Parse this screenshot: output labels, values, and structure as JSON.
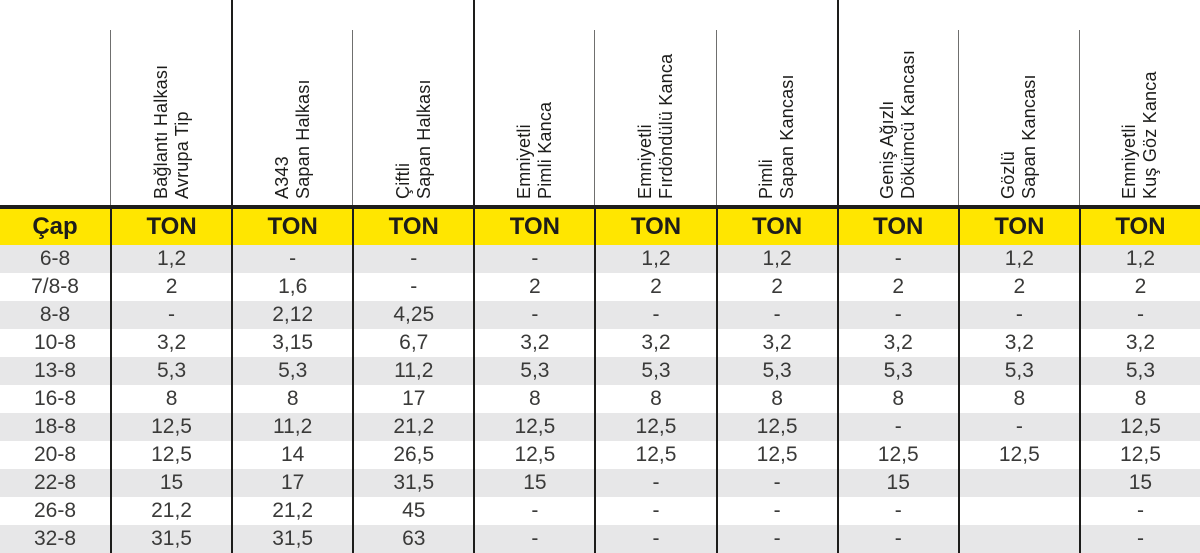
{
  "table": {
    "cap_header": "Çap",
    "ton_label": "TON",
    "colors": {
      "header_yellow": "#ffe600",
      "stripe_gray": "#e7e7e8",
      "line_black": "#1d1d1b",
      "line_gray": "#6f6f6e",
      "data_text": "#3a3a39"
    },
    "columns": [
      {
        "line1": "Bağlantı Halkası",
        "line2": "Avrupa Tip",
        "divider": "partial"
      },
      {
        "line1": "A343",
        "line2": "Sapan Halkası",
        "divider": "full"
      },
      {
        "line1": "Çiftli",
        "line2": "Sapan Halkası",
        "divider": "partial"
      },
      {
        "line1": "Emniyetli",
        "line2": "Pimli Kanca",
        "divider": "full"
      },
      {
        "line1": "Emniyetli",
        "line2": "Fırdöndülü Kanca",
        "divider": "partial"
      },
      {
        "line1": "Pimli",
        "line2": "Sapan Kancası",
        "divider": "partial"
      },
      {
        "line1": "Geniş Ağızlı",
        "line2": "Dökümcü Kancası",
        "divider": "full"
      },
      {
        "line1": "Gözlü",
        "line2": "Sapan Kancası",
        "divider": "partial"
      },
      {
        "line1": "Emniyetli",
        "line2": "Kuş Göz Kanca",
        "divider": "partial"
      }
    ],
    "rows": [
      {
        "cap": "6-8",
        "values": [
          "1,2",
          "-",
          "-",
          "-",
          "1,2",
          "1,2",
          "-",
          "1,2",
          "1,2"
        ]
      },
      {
        "cap": "7/8-8",
        "values": [
          "2",
          "1,6",
          "-",
          "2",
          "2",
          "2",
          "2",
          "2",
          "2"
        ]
      },
      {
        "cap": "8-8",
        "values": [
          "-",
          "2,12",
          "4,25",
          "-",
          "-",
          "-",
          "-",
          "-",
          "-"
        ]
      },
      {
        "cap": "10-8",
        "values": [
          "3,2",
          "3,15",
          "6,7",
          "3,2",
          "3,2",
          "3,2",
          "3,2",
          "3,2",
          "3,2"
        ]
      },
      {
        "cap": "13-8",
        "values": [
          "5,3",
          "5,3",
          "11,2",
          "5,3",
          "5,3",
          "5,3",
          "5,3",
          "5,3",
          "5,3"
        ]
      },
      {
        "cap": "16-8",
        "values": [
          "8",
          "8",
          "17",
          "8",
          "8",
          "8",
          "8",
          "8",
          "8"
        ]
      },
      {
        "cap": "18-8",
        "values": [
          "12,5",
          "11,2",
          "21,2",
          "12,5",
          "12,5",
          "12,5",
          "-",
          "-",
          "12,5"
        ]
      },
      {
        "cap": "20-8",
        "values": [
          "12,5",
          "14",
          "26,5",
          "12,5",
          "12,5",
          "12,5",
          "12,5",
          "12,5",
          "12,5"
        ]
      },
      {
        "cap": "22-8",
        "values": [
          "15",
          "17",
          "31,5",
          "15",
          "-",
          "-",
          "15",
          "",
          "15"
        ]
      },
      {
        "cap": "26-8",
        "values": [
          "21,2",
          "21,2",
          "45",
          "-",
          "-",
          "-",
          "-",
          "",
          "-"
        ]
      },
      {
        "cap": "32-8",
        "values": [
          "31,5",
          "31,5",
          "63",
          "-",
          "-",
          "-",
          "-",
          "",
          "-"
        ]
      }
    ]
  },
  "chart_data": {
    "type": "table",
    "title": "",
    "row_header": "Çap",
    "unit": "TON",
    "columns": [
      "Bağlantı Halkası Avrupa Tip",
      "A343 Sapan Halkası",
      "Çiftli Sapan Halkası",
      "Emniyetli Pimli Kanca",
      "Emniyetli Fırdöndülü Kanca",
      "Pimli Sapan Kancası",
      "Geniş Ağızlı Dökümcü Kancası",
      "Gözlü Sapan Kancası",
      "Emniyetli Kuş Göz Kanca"
    ],
    "rows": [
      [
        "6-8",
        "1,2",
        "-",
        "-",
        "-",
        "1,2",
        "1,2",
        "-",
        "1,2",
        "1,2"
      ],
      [
        "7/8-8",
        "2",
        "1,6",
        "-",
        "2",
        "2",
        "2",
        "2",
        "2",
        "2"
      ],
      [
        "8-8",
        "-",
        "2,12",
        "4,25",
        "-",
        "-",
        "-",
        "-",
        "-",
        "-"
      ],
      [
        "10-8",
        "3,2",
        "3,15",
        "6,7",
        "3,2",
        "3,2",
        "3,2",
        "3,2",
        "3,2",
        "3,2"
      ],
      [
        "13-8",
        "5,3",
        "5,3",
        "11,2",
        "5,3",
        "5,3",
        "5,3",
        "5,3",
        "5,3",
        "5,3"
      ],
      [
        "16-8",
        "8",
        "8",
        "17",
        "8",
        "8",
        "8",
        "8",
        "8",
        "8"
      ],
      [
        "18-8",
        "12,5",
        "11,2",
        "21,2",
        "12,5",
        "12,5",
        "12,5",
        "-",
        "-",
        "12,5"
      ],
      [
        "20-8",
        "12,5",
        "14",
        "26,5",
        "12,5",
        "12,5",
        "12,5",
        "12,5",
        "12,5",
        "12,5"
      ],
      [
        "22-8",
        "15",
        "17",
        "31,5",
        "15",
        "-",
        "-",
        "15",
        "",
        "15"
      ],
      [
        "26-8",
        "21,2",
        "21,2",
        "45",
        "-",
        "-",
        "-",
        "-",
        "",
        "-"
      ],
      [
        "32-8",
        "31,5",
        "31,5",
        "63",
        "-",
        "-",
        "-",
        "-",
        "",
        "-"
      ]
    ]
  }
}
